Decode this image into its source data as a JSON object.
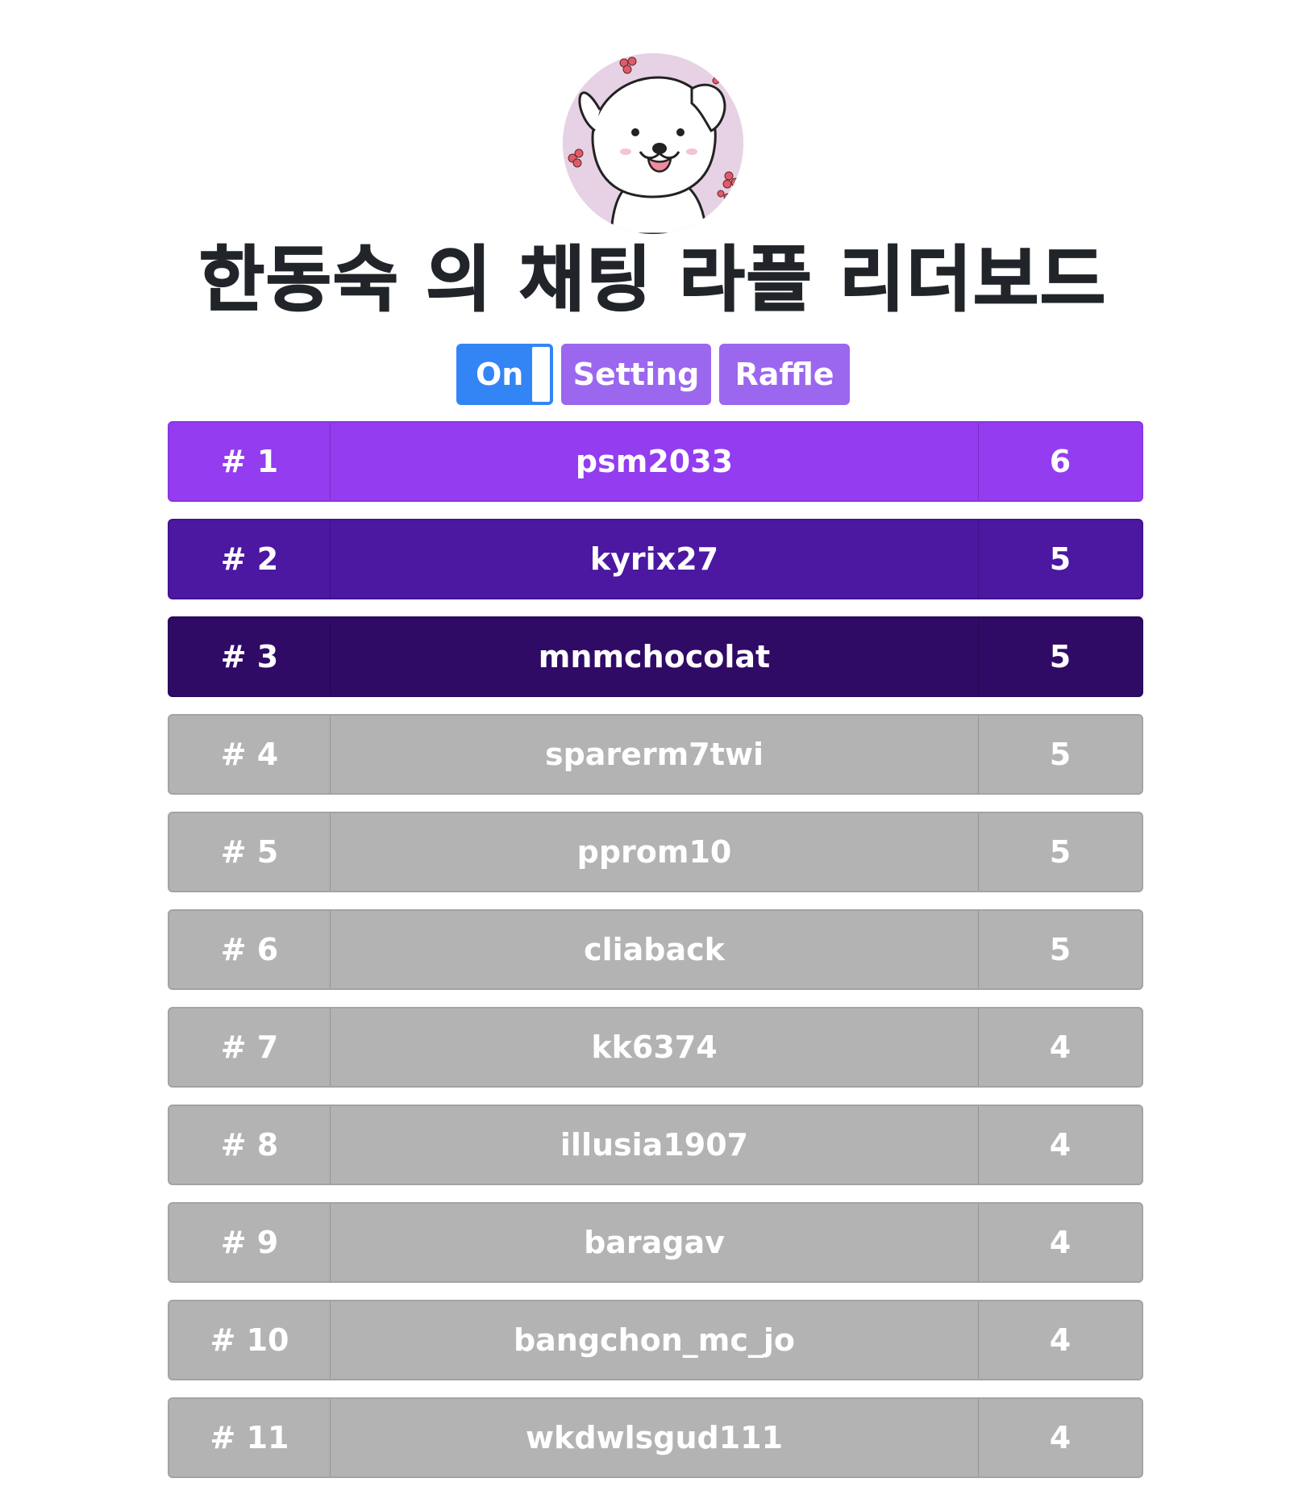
{
  "header": {
    "title": "한동숙 의 채팅 라플 리더보드"
  },
  "controls": {
    "toggle_label": "On",
    "setting_label": "Setting",
    "raffle_label": "Raffle"
  },
  "leaderboard": [
    {
      "rank": "# 1",
      "name": "psm2033",
      "score": "6"
    },
    {
      "rank": "# 2",
      "name": "kyrix27",
      "score": "5"
    },
    {
      "rank": "# 3",
      "name": "mnmchocolat",
      "score": "5"
    },
    {
      "rank": "# 4",
      "name": "sparerm7twi",
      "score": "5"
    },
    {
      "rank": "# 5",
      "name": "pprom10",
      "score": "5"
    },
    {
      "rank": "# 6",
      "name": "cliaback",
      "score": "5"
    },
    {
      "rank": "# 7",
      "name": "kk6374",
      "score": "4"
    },
    {
      "rank": "# 8",
      "name": "illusia1907",
      "score": "4"
    },
    {
      "rank": "# 9",
      "name": "baragav",
      "score": "4"
    },
    {
      "rank": "# 10",
      "name": "bangchon_mc_jo",
      "score": "4"
    },
    {
      "rank": "# 11",
      "name": "wkdwlsgud111",
      "score": "4"
    }
  ],
  "colors": {
    "toggle": "#3385f5",
    "buttons": "#9b67ee",
    "rank1": "#933cf0",
    "rank2": "#4c17a1",
    "rank3": "#300b66",
    "rest": "#b3b3b3"
  }
}
